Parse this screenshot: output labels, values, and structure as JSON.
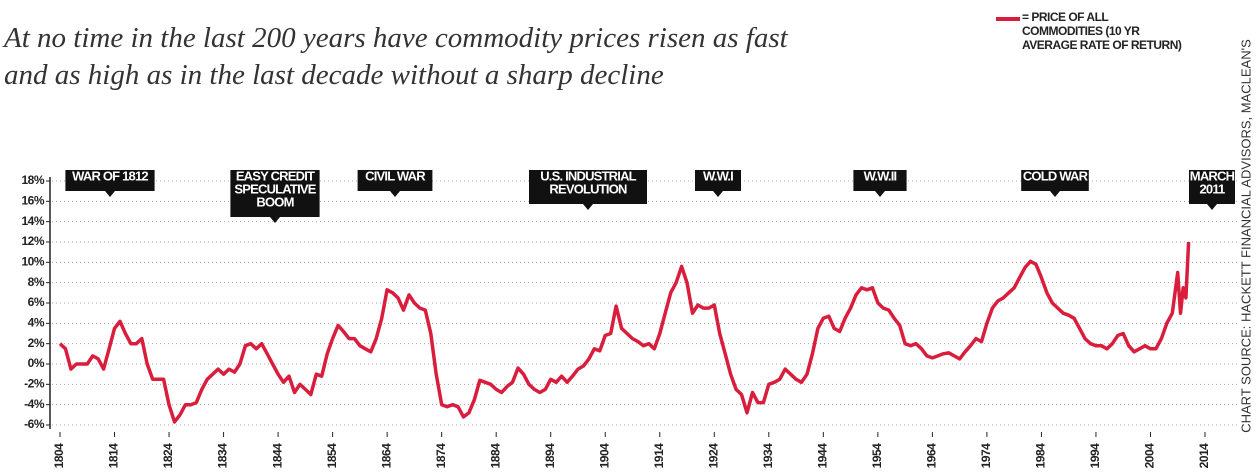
{
  "chart_data": {
    "type": "line",
    "title": "At no time in the last 200 years have commodity prices risen as fast and as high as in the last decade without a sharp decline",
    "source": "CHART SOURCE: HACKETT FINANCIAL ADVISORS, MACLEAN'S",
    "annotations": [
      {
        "lines": [
          "WAR OF 1812"
        ]
      },
      {
        "lines": [
          "EASY CREDIT",
          "SPECULATIVE",
          "BOOM"
        ]
      },
      {
        "lines": [
          "CIVIL WAR"
        ]
      },
      {
        "lines": [
          "U.S. INDUSTRIAL",
          "REVOLUTION"
        ]
      },
      {
        "lines": [
          "W.W.I"
        ]
      },
      {
        "lines": [
          "W.W.II"
        ]
      },
      {
        "lines": [
          "COLD WAR"
        ]
      },
      {
        "lines": [
          "MARCH",
          "2011"
        ]
      }
    ],
    "xlim": [
      1804,
      2014
    ],
    "xticks": [
      1804,
      1814,
      1824,
      1834,
      1844,
      1854,
      1864,
      1874,
      1884,
      1894,
      1904,
      1914,
      1924,
      1934,
      1944,
      1954,
      1964,
      1974,
      1984,
      1994,
      2004,
      2014
    ],
    "ylim": [
      -6,
      18
    ],
    "yticks": [
      {
        "value": -6,
        "label": "-6%"
      },
      {
        "value": -4,
        "label": "-4%"
      },
      {
        "value": -2,
        "label": "-2%"
      },
      {
        "value": 0,
        "label": "0%"
      },
      {
        "value": 2,
        "label": "2%"
      },
      {
        "value": 4,
        "label": "4%"
      },
      {
        "value": 6,
        "label": "6%"
      },
      {
        "value": 8,
        "label": "8%"
      },
      {
        "value": 10,
        "label": "10%"
      },
      {
        "value": 12,
        "label": "12%"
      },
      {
        "value": 14,
        "label": "14%"
      },
      {
        "value": 16,
        "label": "16%"
      },
      {
        "value": 18,
        "label": "18%"
      }
    ],
    "grid": true,
    "x": [
      1804,
      1805,
      1806,
      1807,
      1808,
      1809,
      1810,
      1811,
      1812,
      1813,
      1814,
      1815,
      1816,
      1817,
      1818,
      1819,
      1820,
      1821,
      1822,
      1823,
      1824,
      1825,
      1826,
      1827,
      1828,
      1829,
      1830,
      1831,
      1832,
      1833,
      1834,
      1835,
      1836,
      1837,
      1838,
      1839,
      1840,
      1841,
      1842,
      1843,
      1844,
      1845,
      1846,
      1847,
      1848,
      1849,
      1850,
      1851,
      1852,
      1853,
      1854,
      1855,
      1856,
      1857,
      1858,
      1859,
      1860,
      1861,
      1862,
      1863,
      1864,
      1865,
      1866,
      1867,
      1868,
      1869,
      1870,
      1871,
      1872,
      1873,
      1874,
      1875,
      1876,
      1877,
      1878,
      1879,
      1880,
      1881,
      1882,
      1883,
      1884,
      1885,
      1886,
      1887,
      1888,
      1889,
      1890,
      1891,
      1892,
      1893,
      1894,
      1895,
      1896,
      1897,
      1898,
      1899,
      1900,
      1901,
      1902,
      1903,
      1904,
      1905,
      1906,
      1907,
      1908,
      1909,
      1910,
      1911,
      1912,
      1913,
      1914,
      1915,
      1916,
      1917,
      1918,
      1919,
      1920,
      1921,
      1922,
      1923,
      1924,
      1925,
      1926,
      1927,
      1928,
      1929,
      1930,
      1931,
      1932,
      1933,
      1934,
      1935,
      1936,
      1937,
      1938,
      1939,
      1940,
      1941,
      1942,
      1943,
      1944,
      1945,
      1946,
      1947,
      1948,
      1949,
      1950,
      1951,
      1952,
      1953,
      1954,
      1955,
      1956,
      1957,
      1958,
      1959,
      1960,
      1961,
      1962,
      1963,
      1964,
      1965,
      1966,
      1967,
      1968,
      1969,
      1970,
      1971,
      1972,
      1973,
      1974,
      1975,
      1976,
      1977,
      1978,
      1979,
      1980,
      1981,
      1982,
      1983,
      1984,
      1985,
      1986,
      1987,
      1988,
      1989,
      1990,
      1991,
      1992,
      1993,
      1994,
      1995,
      1996,
      1997,
      1998,
      1999,
      2000,
      2001,
      2002,
      2003,
      2004,
      2005,
      2006,
      2007,
      2008,
      2009,
      2009.5,
      2010,
      2010.5,
      2011
    ],
    "series": [
      {
        "name": "= PRICE OF ALL COMMODITIES (10 YR AVERAGE RATE OF RETURN)",
        "color": "#d81e3c",
        "values": [
          2,
          1.5,
          -0.5,
          0,
          0,
          0,
          0.8,
          0.5,
          -0.5,
          1.5,
          3.5,
          4.2,
          3,
          2,
          2,
          2.5,
          0,
          -1.5,
          -1.5,
          -1.5,
          -4,
          -5.7,
          -5,
          -4,
          -4,
          -3.8,
          -2.5,
          -1.5,
          -1,
          -0.5,
          -1,
          -0.5,
          -0.8,
          0,
          1.8,
          2,
          1.5,
          2,
          1,
          0,
          -1,
          -1.8,
          -1.2,
          -2.8,
          -2,
          -2.5,
          -3,
          -1,
          -1.2,
          1,
          2.5,
          3.8,
          3.2,
          2.5,
          2.5,
          1.8,
          1.5,
          1.2,
          2.5,
          4.5,
          7.3,
          7,
          6.5,
          5.3,
          6.8,
          6,
          5.5,
          5.3,
          3,
          -1,
          -4,
          -4.2,
          -4,
          -4.2,
          -5.2,
          -4.8,
          -3.5,
          -1.6,
          -1.8,
          -2,
          -2.5,
          -2.8,
          -2.2,
          -1.8,
          -0.4,
          -1,
          -2,
          -2.5,
          -2.8,
          -2.5,
          -1.5,
          -1.8,
          -1.2,
          -1.8,
          -1.2,
          -0.5,
          -0.2,
          0.5,
          1.5,
          1.3,
          2.8,
          3,
          5.7,
          3.5,
          3,
          2.5,
          2.2,
          1.8,
          2,
          1.5,
          3,
          5,
          7,
          8,
          9.6,
          8,
          5,
          5.8,
          5.5,
          5.5,
          5.8,
          3,
          1,
          -1,
          -2.5,
          -3,
          -4.8,
          -2.8,
          -3.8,
          -3.8,
          -2,
          -1.8,
          -1.5,
          -0.5,
          -1,
          -1.5,
          -1.8,
          -1,
          1,
          3.5,
          4.5,
          4.7,
          3.5,
          3.2,
          4.5,
          5.5,
          6.8,
          7.5,
          7.3,
          7.5,
          6,
          5.5,
          5.3,
          4.5,
          3.8,
          2,
          1.8,
          2,
          1.5,
          0.8,
          0.6,
          0.8,
          1,
          1.1,
          0.8,
          0.5,
          1.2,
          1.8,
          2.5,
          2.2,
          4,
          5.5,
          6.2,
          6.5,
          7,
          7.5,
          8.5,
          9.5,
          10.1,
          9.8,
          8.5,
          7,
          6,
          5.5,
          5,
          4.8,
          4.5,
          3.5,
          2.5,
          2,
          1.8,
          1.8,
          1.5,
          2,
          2.8,
          3,
          1.8,
          1.2,
          1.5,
          1.8,
          1.5,
          1.5,
          2.5,
          4,
          5,
          9,
          5,
          7.5,
          6.5,
          12
        ]
      }
    ]
  }
}
